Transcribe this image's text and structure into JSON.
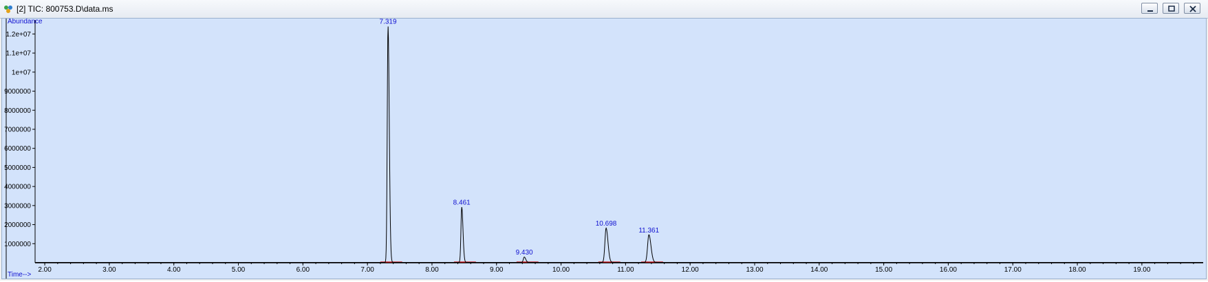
{
  "window": {
    "title": "[2] TIC: 800753.D\\data.ms",
    "buttons": {
      "minimize": "minimize",
      "restore": "restore",
      "close": "close"
    }
  },
  "colors": {
    "plot_background": "#d3e3fb",
    "trace": "#000000",
    "peak_label": "#1010d0",
    "baseline_marker": "#cc0000"
  },
  "chart_data": {
    "type": "line",
    "title": "",
    "ylabel": "Abundance",
    "xlabel": "Time-->",
    "xlim": [
      1.85,
      19.95
    ],
    "ylim": [
      0,
      12700000
    ],
    "x_ticks": [
      "2.00",
      "3.00",
      "4.00",
      "5.00",
      "6.00",
      "7.00",
      "8.00",
      "9.00",
      "10.00",
      "11.00",
      "12.00",
      "13.00",
      "14.00",
      "15.00",
      "16.00",
      "17.00",
      "18.00",
      "19.00"
    ],
    "y_ticks": [
      {
        "value": 1000000,
        "label": "1000000"
      },
      {
        "value": 2000000,
        "label": "2000000"
      },
      {
        "value": 3000000,
        "label": "3000000"
      },
      {
        "value": 4000000,
        "label": "4000000"
      },
      {
        "value": 5000000,
        "label": "5000000"
      },
      {
        "value": 6000000,
        "label": "6000000"
      },
      {
        "value": 7000000,
        "label": "7000000"
      },
      {
        "value": 8000000,
        "label": "8000000"
      },
      {
        "value": 9000000,
        "label": "9000000"
      },
      {
        "value": 10000000,
        "label": "1e+07"
      },
      {
        "value": 11000000,
        "label": "1.1e+07"
      },
      {
        "value": 12000000,
        "label": "1.2e+07"
      }
    ],
    "peaks": [
      {
        "rt": 7.319,
        "label": "7.319",
        "abundance": 12400000
      },
      {
        "rt": 8.461,
        "label": "8.461",
        "abundance": 2900000
      },
      {
        "rt": 9.43,
        "label": "9.430",
        "abundance": 280000
      },
      {
        "rt": 10.698,
        "label": "10.698",
        "abundance": 1800000
      },
      {
        "rt": 11.361,
        "label": "11.361",
        "abundance": 1450000
      }
    ],
    "grid": false
  }
}
